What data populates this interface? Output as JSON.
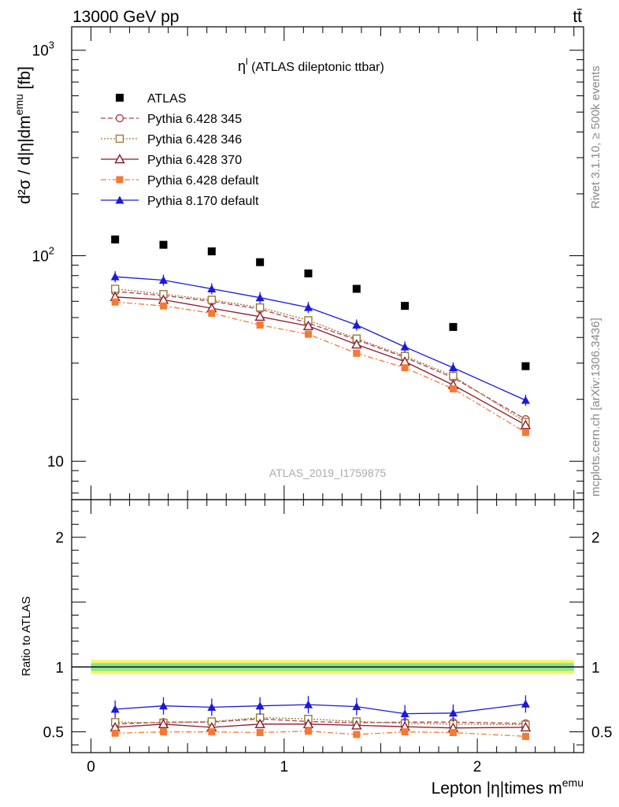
{
  "header": {
    "energy_label": "13000 GeV pp",
    "process_label": "tt̄"
  },
  "side_labels": {
    "rivet": "Rivet 3.1.10, ≥ 500k events",
    "mcplots": "mcplots.cern.ch [arXiv:1306.3436]"
  },
  "main_plot": {
    "title_sym": "η",
    "title_sup": "l",
    "title_rest": " (ATLAS dileptonic ttbar)",
    "watermark": "ATLAS_2019_I1759875",
    "ylabel": "d²σ / d|η|dm",
    "ylabel_sup": "emu",
    "ylabel_unit": " [fb]",
    "ytick_labels": [
      "10",
      "10",
      "10"
    ],
    "ytick_sups": [
      "",
      "2",
      "3"
    ]
  },
  "ratio_plot": {
    "ylabel": "Ratio to ATLAS"
  },
  "xaxis": {
    "label": "Lepton |η|times m",
    "label_sup": "emu"
  },
  "chart_data": [
    {
      "type": "scatter",
      "title": "η^l (ATLAS dileptonic ttbar)",
      "xlabel": "Lepton |η|times m^emu",
      "ylabel": "d²σ / d|η|dm^emu [fb]",
      "yscale": "log",
      "xlim": [
        -0.1,
        2.55
      ],
      "ylim": [
        6.5,
        1300
      ],
      "x": [
        0.125,
        0.375,
        0.625,
        0.875,
        1.125,
        1.375,
        1.625,
        1.875,
        2.25
      ],
      "series": [
        {
          "name": "ATLAS",
          "color": "#000000",
          "marker": "square-filled",
          "values": [
            120,
            113,
            105,
            93,
            82,
            69,
            57,
            45,
            29
          ]
        },
        {
          "name": "Pythia 6.428 345",
          "color": "#b5404f",
          "marker": "circle-open",
          "line": "dashed",
          "values": [
            67,
            64,
            60,
            55,
            47,
            39,
            32,
            25.5,
            16
          ]
        },
        {
          "name": "Pythia 6.428 346",
          "color": "#9b7a3a",
          "marker": "square-open",
          "line": "dotted",
          "values": [
            69,
            65,
            61,
            56,
            48.5,
            39.5,
            32.5,
            26,
            15.5
          ]
        },
        {
          "name": "Pythia 6.428 370",
          "color": "#8b1a2e",
          "marker": "triangle-open",
          "line": "solid",
          "values": [
            63,
            61,
            55.5,
            50.5,
            45.5,
            37,
            30.5,
            23.5,
            15
          ]
        },
        {
          "name": "Pythia 6.428 default",
          "color": "#f47a34",
          "marker": "square-filled",
          "line": "dashdot",
          "values": [
            59.5,
            57,
            52.5,
            46,
            41.5,
            33.5,
            28.5,
            22.5,
            13.8
          ]
        },
        {
          "name": "Pythia 8.170 default",
          "color": "#1a1adb",
          "marker": "triangle-filled",
          "line": "solid",
          "values": [
            79,
            76,
            69,
            62.5,
            56,
            46,
            36,
            28.5,
            19.8
          ]
        }
      ]
    },
    {
      "type": "scatter",
      "ylabel": "Ratio to ATLAS",
      "xlim": [
        -0.1,
        2.55
      ],
      "ylim": [
        0.34,
        2.29
      ],
      "yticks": [
        0.5,
        1,
        2
      ],
      "reference_line": 1,
      "band": {
        "inner": [
          0.97,
          1.03
        ],
        "outer": [
          0.945,
          1.055
        ]
      },
      "x": [
        0.125,
        0.375,
        0.625,
        0.875,
        1.125,
        1.375,
        1.625,
        1.875,
        2.25
      ],
      "series": [
        {
          "name": "Pythia 6.428 345",
          "values": [
            0.56,
            0.575,
            0.575,
            0.6,
            0.58,
            0.57,
            0.575,
            0.575,
            0.565
          ]
        },
        {
          "name": "Pythia 6.428 346",
          "values": [
            0.575,
            0.57,
            0.58,
            0.61,
            0.6,
            0.58,
            0.565,
            0.56,
            0.555
          ]
        },
        {
          "name": "Pythia 6.428 370",
          "values": [
            0.535,
            0.56,
            0.535,
            0.56,
            0.56,
            0.55,
            0.54,
            0.53,
            0.535
          ]
        },
        {
          "name": "Pythia 6.428 default",
          "values": [
            0.49,
            0.5,
            0.5,
            0.495,
            0.505,
            0.48,
            0.5,
            0.495,
            0.465
          ]
        },
        {
          "name": "Pythia 8.170 default",
          "values": [
            0.675,
            0.7,
            0.69,
            0.7,
            0.71,
            0.695,
            0.64,
            0.645,
            0.715
          ]
        }
      ],
      "xticks": [
        0,
        1,
        2
      ]
    }
  ]
}
